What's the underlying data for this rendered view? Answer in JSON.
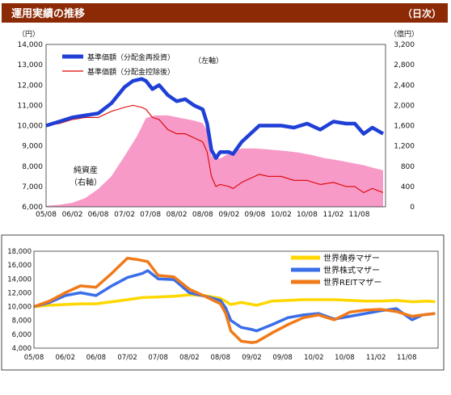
{
  "header": {
    "title": "運用実績の推移",
    "frequency": "（日次）"
  },
  "colors": {
    "header_bg": "#8c2a06",
    "header_text": "#ffffff",
    "nav_main": "#1f3fd6",
    "nav_dist": "#e00000",
    "net_assets": "#f79ac8",
    "bond": "#ffd700",
    "stock": "#3a6ee8",
    "reit": "#f07a1a"
  },
  "chart_data": [
    {
      "type": "line",
      "left_unit": "（円）",
      "right_unit": "（億円）",
      "ylim": [
        6000,
        14000
      ],
      "ylim_right": [
        0,
        3200
      ],
      "xlim": [
        "2005-08-01",
        "2012-02-01"
      ],
      "y_ticks": [
        "6,000",
        "7,000",
        "8,000",
        "9,000",
        "10,000",
        "11,000",
        "12,000",
        "13,000",
        "14,000"
      ],
      "y_ticks_right": [
        "0",
        "400",
        "800",
        "1,200",
        "1,600",
        "2,000",
        "2,400",
        "2,800",
        "3,200"
      ],
      "x_ticks": [
        "05/08",
        "06/02",
        "06/08",
        "07/02",
        "07/08",
        "08/02",
        "08/08",
        "09/02",
        "09/08",
        "10/02",
        "10/08",
        "11/02",
        "11/08"
      ],
      "legend": [
        {
          "label": "基準価額（分配金再投資）",
          "axis_label": "（左軸）"
        },
        {
          "label": "基準価額（分配金控除後）"
        }
      ],
      "annotation": {
        "line1": "純資産",
        "line2": "（右軸）"
      },
      "series": [
        {
          "name": "基準価額（分配金再投資）",
          "axis": "left",
          "x": [
            "2005-08-01",
            "2005-11-01",
            "2006-02-01",
            "2006-05-01",
            "2006-08-01",
            "2006-11-01",
            "2007-02-01",
            "2007-04-01",
            "2007-06-01",
            "2007-07-01",
            "2007-08-15",
            "2007-10-01",
            "2007-12-01",
            "2008-02-01",
            "2008-04-01",
            "2008-06-01",
            "2008-08-01",
            "2008-09-01",
            "2008-10-01",
            "2008-11-01",
            "2008-12-01",
            "2009-02-01",
            "2009-03-01",
            "2009-05-01",
            "2009-07-01",
            "2009-09-01",
            "2009-11-01",
            "2010-02-01",
            "2010-05-01",
            "2010-08-01",
            "2010-11-01",
            "2011-02-01",
            "2011-05-01",
            "2011-07-01",
            "2011-09-01",
            "2011-11-01",
            "2012-01-15"
          ],
          "values": [
            10000,
            10200,
            10400,
            10500,
            10600,
            11100,
            11900,
            12200,
            12300,
            12200,
            11800,
            12000,
            11500,
            11200,
            11300,
            11000,
            10800,
            10100,
            8800,
            8400,
            8700,
            8700,
            8600,
            9200,
            9600,
            10000,
            10000,
            10000,
            9900,
            10100,
            9800,
            10200,
            10100,
            10100,
            9600,
            9900,
            9600
          ]
        },
        {
          "name": "基準価額（分配金控除後）",
          "axis": "left",
          "x": [
            "2005-08-01",
            "2005-11-01",
            "2006-02-01",
            "2006-05-01",
            "2006-08-01",
            "2006-11-01",
            "2007-02-01",
            "2007-04-01",
            "2007-06-01",
            "2007-07-01",
            "2007-08-15",
            "2007-10-01",
            "2007-12-01",
            "2008-02-01",
            "2008-04-01",
            "2008-06-01",
            "2008-08-01",
            "2008-09-01",
            "2008-10-01",
            "2008-11-01",
            "2008-12-01",
            "2009-02-01",
            "2009-03-01",
            "2009-05-01",
            "2009-07-01",
            "2009-09-01",
            "2009-11-01",
            "2010-02-01",
            "2010-05-01",
            "2010-08-01",
            "2010-11-01",
            "2011-02-01",
            "2011-05-01",
            "2011-07-01",
            "2011-09-01",
            "2011-11-01",
            "2012-01-15"
          ],
          "values": [
            10000,
            10100,
            10300,
            10400,
            10400,
            10700,
            10900,
            11000,
            10900,
            10800,
            10400,
            10300,
            9800,
            9600,
            9600,
            9400,
            9200,
            8700,
            7500,
            7000,
            7100,
            7000,
            6900,
            7200,
            7400,
            7600,
            7500,
            7500,
            7300,
            7300,
            7100,
            7200,
            7000,
            7000,
            6700,
            6900,
            6700
          ]
        },
        {
          "name": "純資産",
          "axis": "right",
          "type": "area",
          "x": [
            "2005-08-01",
            "2005-11-01",
            "2006-02-01",
            "2006-05-01",
            "2006-08-01",
            "2006-11-01",
            "2007-02-01",
            "2007-05-01",
            "2007-07-01",
            "2007-09-01",
            "2007-12-01",
            "2008-03-01",
            "2008-06-01",
            "2008-08-01",
            "2008-09-01",
            "2008-10-01",
            "2008-12-01",
            "2009-02-01",
            "2009-05-01",
            "2009-08-01",
            "2009-11-01",
            "2010-03-01",
            "2010-06-01",
            "2010-09-01",
            "2010-12-01",
            "2011-03-01",
            "2011-06-01",
            "2011-09-01",
            "2011-12-01",
            "2012-01-15"
          ],
          "values": [
            20,
            40,
            80,
            170,
            350,
            600,
            1000,
            1400,
            1750,
            1800,
            1800,
            1750,
            1700,
            1650,
            1500,
            1000,
            950,
            1050,
            1150,
            1150,
            1130,
            1100,
            1070,
            1020,
            960,
            920,
            870,
            820,
            750,
            720
          ]
        }
      ]
    },
    {
      "type": "line",
      "ylim": [
        4000,
        18000
      ],
      "xlim": [
        "2005-08-01",
        "2012-02-01"
      ],
      "y_ticks": [
        "4,000",
        "6,000",
        "8,000",
        "10,000",
        "12,000",
        "14,000",
        "16,000",
        "18,000"
      ],
      "x_ticks": [
        "05/08",
        "06/02",
        "06/08",
        "07/02",
        "07/08",
        "08/02",
        "08/08",
        "09/02",
        "09/08",
        "10/02",
        "10/08",
        "11/02",
        "11/08"
      ],
      "series": [
        {
          "name": "世界債券マザー",
          "x": [
            "2005-08-01",
            "2005-11-01",
            "2006-02-01",
            "2006-05-01",
            "2006-08-01",
            "2006-11-01",
            "2007-02-01",
            "2007-05-01",
            "2007-08-01",
            "2007-11-01",
            "2008-02-01",
            "2008-05-01",
            "2008-08-01",
            "2008-10-01",
            "2008-12-01",
            "2009-03-01",
            "2009-06-01",
            "2009-09-01",
            "2009-12-01",
            "2010-03-01",
            "2010-06-01",
            "2010-09-01",
            "2010-12-01",
            "2011-03-01",
            "2011-06-01",
            "2011-09-01",
            "2011-12-01",
            "2012-01-15"
          ],
          "values": [
            10000,
            10200,
            10300,
            10400,
            10400,
            10700,
            11000,
            11300,
            11400,
            11500,
            11700,
            11600,
            11200,
            10300,
            10600,
            10200,
            10800,
            10900,
            11000,
            11000,
            11000,
            10900,
            10800,
            10800,
            10900,
            10700,
            10800,
            10700
          ]
        },
        {
          "name": "世界株式マザー",
          "x": [
            "2005-08-01",
            "2005-11-01",
            "2006-02-01",
            "2006-05-01",
            "2006-08-01",
            "2006-11-01",
            "2007-02-01",
            "2007-05-01",
            "2007-06-01",
            "2007-08-01",
            "2007-11-01",
            "2008-02-01",
            "2008-05-01",
            "2008-08-01",
            "2008-09-01",
            "2008-10-01",
            "2008-12-01",
            "2009-02-01",
            "2009-03-01",
            "2009-06-01",
            "2009-09-01",
            "2009-12-01",
            "2010-03-01",
            "2010-06-01",
            "2010-09-01",
            "2010-12-01",
            "2011-03-01",
            "2011-06-01",
            "2011-09-01",
            "2011-11-01",
            "2012-01-15"
          ],
          "values": [
            10000,
            10600,
            11600,
            12000,
            11600,
            13000,
            14200,
            14800,
            15200,
            14000,
            13900,
            12000,
            11500,
            10900,
            9800,
            8000,
            7000,
            6700,
            6500,
            7400,
            8400,
            8800,
            9000,
            8200,
            8600,
            9000,
            9400,
            9700,
            8100,
            8800,
            9000
          ]
        },
        {
          "name": "世界REITマザー",
          "x": [
            "2005-08-01",
            "2005-11-01",
            "2006-02-01",
            "2006-05-01",
            "2006-08-01",
            "2006-11-01",
            "2007-02-01",
            "2007-04-01",
            "2007-06-01",
            "2007-08-01",
            "2007-11-01",
            "2008-02-01",
            "2008-05-01",
            "2008-08-01",
            "2008-09-01",
            "2008-10-01",
            "2008-12-01",
            "2009-02-01",
            "2009-03-01",
            "2009-06-01",
            "2009-09-01",
            "2009-12-01",
            "2010-03-01",
            "2010-06-01",
            "2010-09-01",
            "2010-12-01",
            "2011-03-01",
            "2011-06-01",
            "2011-09-01",
            "2011-11-01",
            "2012-01-15"
          ],
          "values": [
            10000,
            10800,
            12000,
            13000,
            12800,
            14800,
            17000,
            16800,
            16500,
            14500,
            14300,
            12500,
            11500,
            10400,
            9000,
            6500,
            5000,
            4800,
            4900,
            6200,
            7400,
            8400,
            8800,
            8100,
            9200,
            9500,
            9600,
            9300,
            8600,
            8800,
            9000
          ]
        }
      ]
    }
  ]
}
